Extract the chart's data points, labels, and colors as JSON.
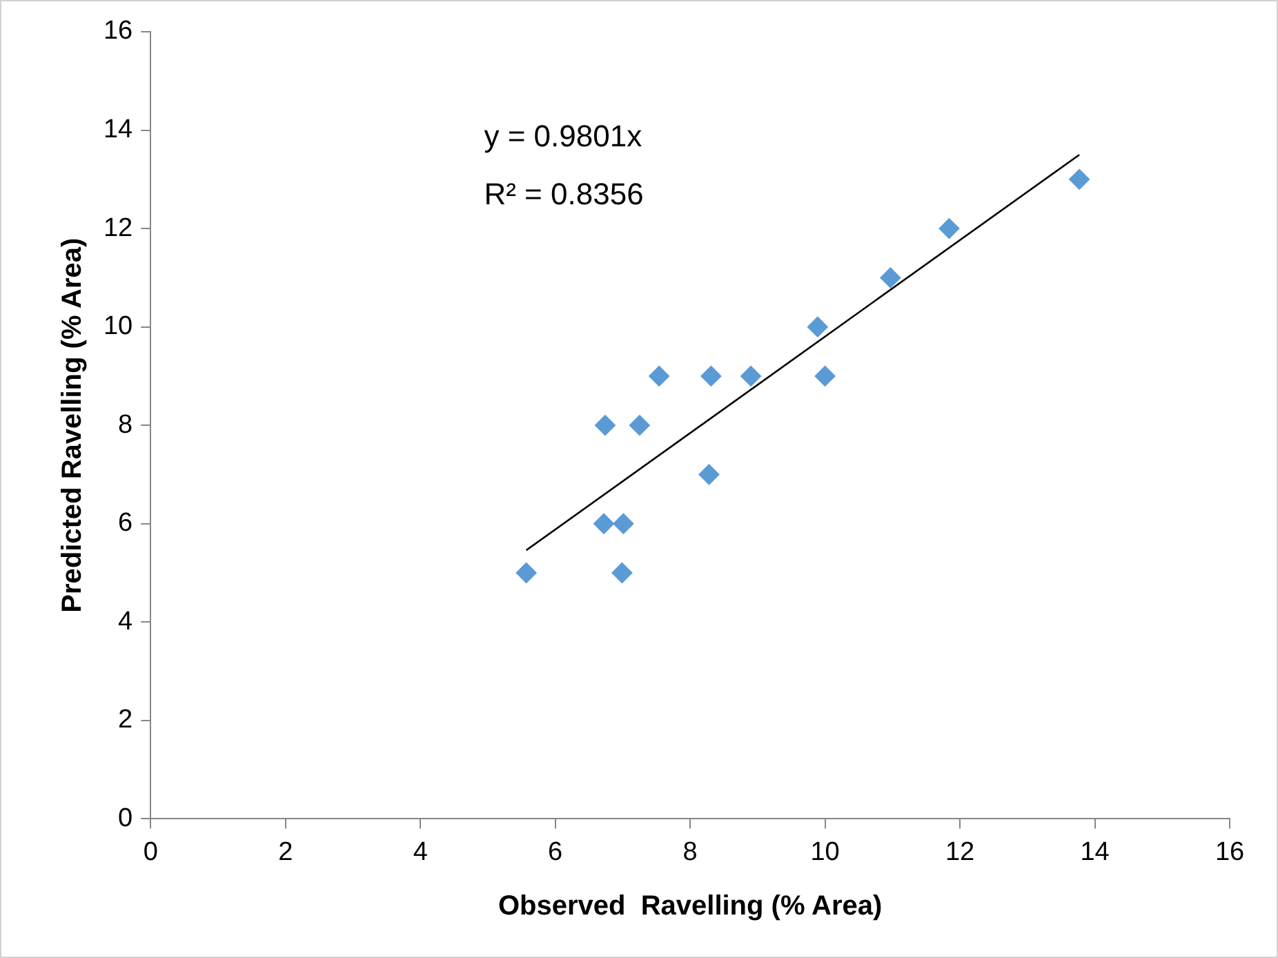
{
  "chart_data": {
    "type": "scatter",
    "xlabel": "Observed  Ravelling (% Area)",
    "ylabel": "Predicted Ravelling (% Area)",
    "xlim": [
      0,
      16
    ],
    "xticks": [
      0,
      2,
      4,
      6,
      8,
      10,
      12,
      14,
      16
    ],
    "ylim": [
      0,
      16
    ],
    "yticks": [
      0,
      2,
      4,
      6,
      8,
      10,
      12,
      14,
      16
    ],
    "grid": false,
    "legend": false,
    "marker": "diamond",
    "annotations": [
      "y = 0.9801x",
      "R² = 0.8356"
    ],
    "series": [
      {
        "color": "#5b9bd5",
        "x": [
          5.57,
          6.74,
          6.72,
          7.01,
          6.99,
          7.25,
          7.54,
          8.31,
          8.28,
          8.9,
          9.89,
          10.0,
          10.97,
          11.84,
          13.77
        ],
        "values": [
          5,
          8,
          6,
          6,
          5,
          8,
          9,
          9,
          7,
          9,
          10,
          9,
          11,
          12,
          13
        ]
      },
      {
        "type": "line",
        "marker": "none",
        "color": "#000000",
        "x": [
          5.57,
          13.77
        ],
        "values": [
          5.46,
          13.5
        ]
      }
    ]
  }
}
